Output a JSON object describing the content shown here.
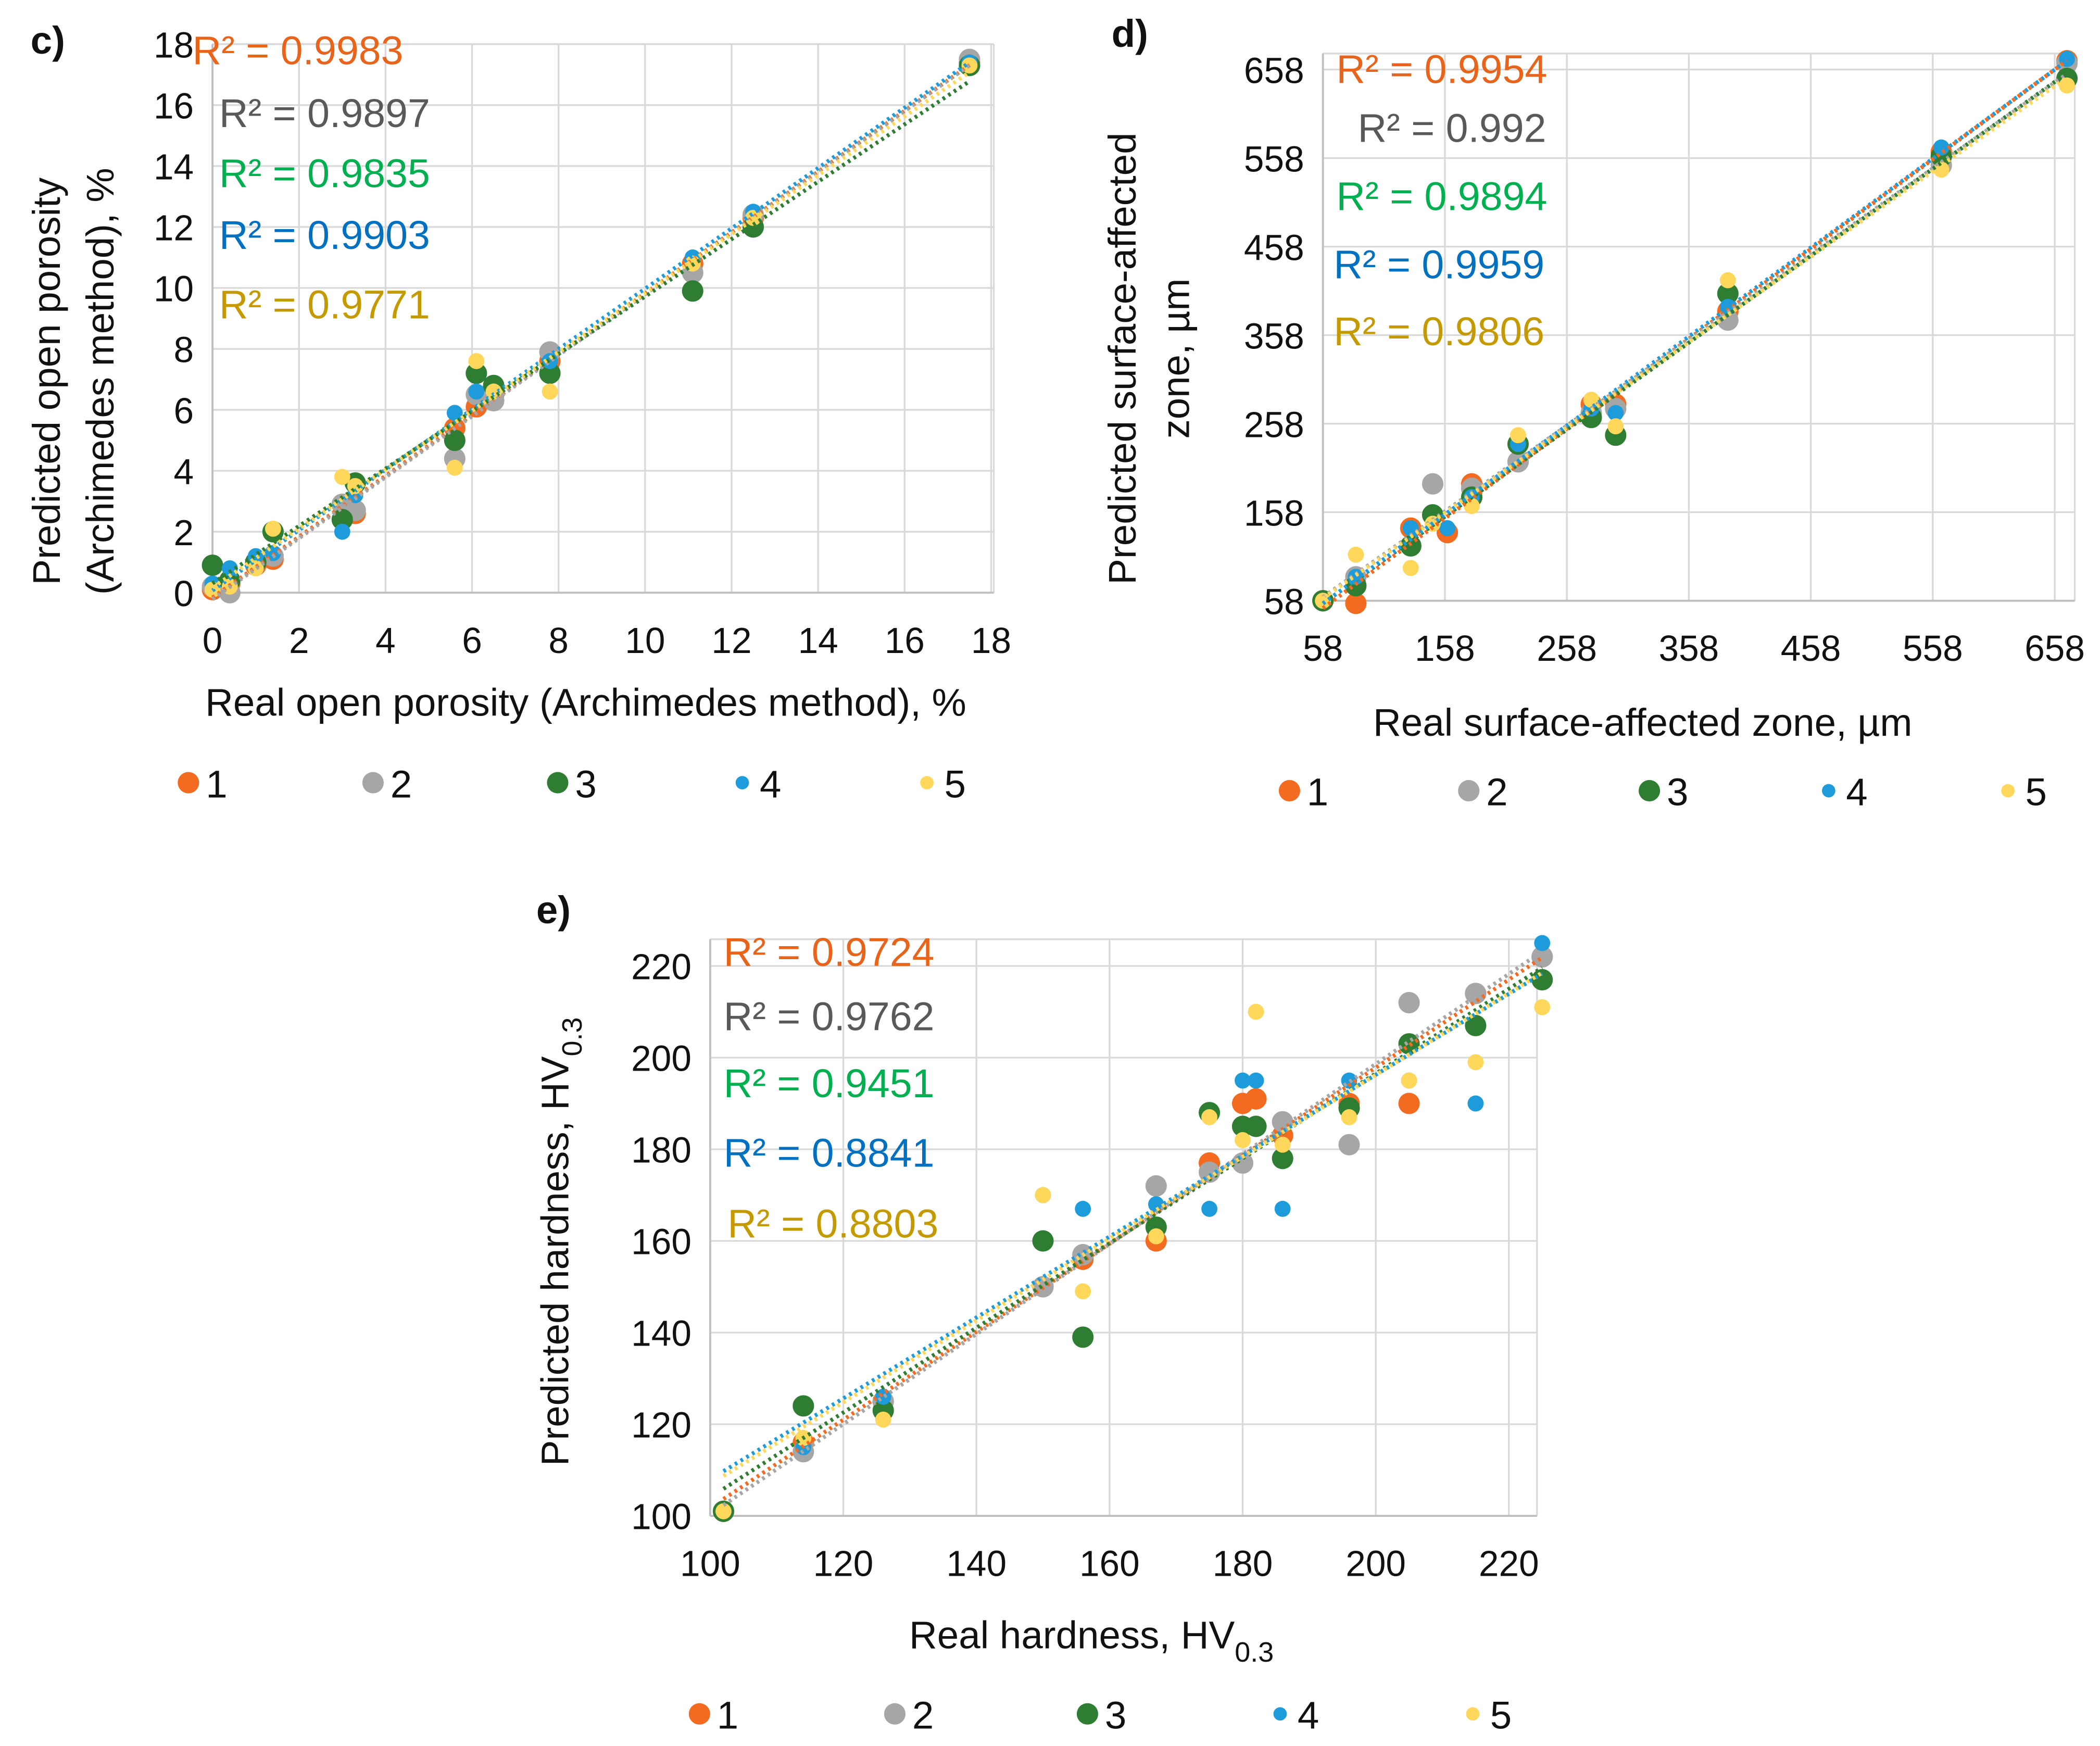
{
  "colors": {
    "s1": "#F26B21",
    "s2": "#A6A6A6",
    "s3": "#2E7D32",
    "s4": "#1E9BDB",
    "s5": "#FFD75A",
    "r2_1": "#E8641B",
    "r2_2": "#595959",
    "r2_3": "#00B050",
    "r2_4": "#0070C0",
    "r2_5": "#C49A00"
  },
  "legend": [
    "1",
    "2",
    "3",
    "4",
    "5"
  ],
  "chart_data": [
    {
      "id": "c",
      "type": "scatter",
      "panel_label": "c)",
      "xlabel": "Real open porosity (Archimedes method), %",
      "ylabel": [
        "Predicted open porosity",
        "(Archimedes method), %"
      ],
      "xlim": [
        0,
        18
      ],
      "ylim": [
        0,
        18
      ],
      "xticks": [
        "0",
        "2",
        "4",
        "6",
        "8",
        "10",
        "12",
        "14",
        "16",
        "18"
      ],
      "yticks": [
        "0",
        "2",
        "4",
        "6",
        "8",
        "10",
        "12",
        "14",
        "16",
        "18"
      ],
      "r2": [
        "R² = 0.9983",
        "R² = 0.9897",
        "R² = 0.9835",
        "R² = 0.9903",
        "R² = 0.9771"
      ],
      "trendline": "linear, dotted",
      "series": [
        {
          "name": "1",
          "points": [
            [
              0,
              0.1
            ],
            [
              0.4,
              0.3
            ],
            [
              1,
              0.9
            ],
            [
              1.4,
              1.1
            ],
            [
              3,
              2.9
            ],
            [
              3.3,
              2.6
            ],
            [
              5.6,
              5.4
            ],
            [
              6.1,
              6.1
            ],
            [
              6.5,
              6.5
            ],
            [
              7.8,
              7.6
            ],
            [
              11.1,
              10.8
            ],
            [
              12.5,
              12.3
            ],
            [
              17.5,
              17.4
            ]
          ]
        },
        {
          "name": "2",
          "points": [
            [
              0,
              0.2
            ],
            [
              0.4,
              0
            ],
            [
              1,
              1
            ],
            [
              1.4,
              1.2
            ],
            [
              3,
              2.9
            ],
            [
              3.3,
              2.7
            ],
            [
              5.6,
              4.4
            ],
            [
              6.1,
              6.5
            ],
            [
              6.5,
              6.3
            ],
            [
              7.8,
              7.9
            ],
            [
              11.1,
              10.5
            ],
            [
              12.5,
              12.4
            ],
            [
              17.5,
              17.5
            ]
          ]
        },
        {
          "name": "3",
          "points": [
            [
              0,
              0.9
            ],
            [
              0.4,
              0.4
            ],
            [
              1,
              1
            ],
            [
              1.4,
              2
            ],
            [
              3,
              2.4
            ],
            [
              3.3,
              3.6
            ],
            [
              5.6,
              5
            ],
            [
              6.1,
              7.2
            ],
            [
              6.5,
              6.8
            ],
            [
              7.8,
              7.2
            ],
            [
              11.1,
              9.9
            ],
            [
              12.5,
              12
            ],
            [
              17.5,
              17.3
            ]
          ]
        },
        {
          "name": "4",
          "points": [
            [
              0,
              0.3
            ],
            [
              0.4,
              0.8
            ],
            [
              1,
              1.2
            ],
            [
              1.4,
              1.3
            ],
            [
              3,
              2
            ],
            [
              3.3,
              3.2
            ],
            [
              5.6,
              5.9
            ],
            [
              6.1,
              6.6
            ],
            [
              6.5,
              6.6
            ],
            [
              7.8,
              7.6
            ],
            [
              11.1,
              11
            ],
            [
              12.5,
              12.5
            ],
            [
              17.5,
              17.4
            ]
          ]
        },
        {
          "name": "5",
          "points": [
            [
              0,
              0.1
            ],
            [
              0.4,
              0.2
            ],
            [
              1,
              0.8
            ],
            [
              1.4,
              2.1
            ],
            [
              3,
              3.8
            ],
            [
              3.3,
              3.5
            ],
            [
              5.6,
              4.1
            ],
            [
              6.1,
              7.6
            ],
            [
              6.5,
              6.6
            ],
            [
              7.8,
              6.6
            ],
            [
              11.1,
              10.8
            ],
            [
              12.5,
              12.3
            ],
            [
              17.5,
              17.3
            ]
          ]
        }
      ]
    },
    {
      "id": "d",
      "type": "scatter",
      "panel_label": "d)",
      "xlabel": "Real surface-affected zone, µm",
      "ylabel": [
        "Predicted surface-affected",
        "zone, µm"
      ],
      "xlim": [
        58,
        673
      ],
      "ylim": [
        58,
        673
      ],
      "xticks": [
        "58",
        "158",
        "258",
        "358",
        "458",
        "558",
        "658"
      ],
      "yticks": [
        "58",
        "158",
        "258",
        "358",
        "458",
        "558",
        "658"
      ],
      "r2": [
        "R² = 0.9954",
        "R² = 0.992",
        "R² = 0.9894",
        "R² = 0.9959",
        "R² = 0.9806"
      ],
      "trendline": "linear, dotted",
      "series": [
        {
          "name": "1",
          "points": [
            [
              58,
              58
            ],
            [
              85,
              55
            ],
            [
              130,
              140
            ],
            [
              160,
              135
            ],
            [
              180,
              190
            ],
            [
              218,
              215
            ],
            [
              278,
              280
            ],
            [
              298,
              280
            ],
            [
              390,
              385
            ],
            [
              565,
              565
            ],
            [
              668,
              668
            ]
          ]
        },
        {
          "name": "2",
          "points": [
            [
              58,
              58
            ],
            [
              85,
              85
            ],
            [
              130,
              120
            ],
            [
              148,
              190
            ],
            [
              180,
              185
            ],
            [
              218,
              215
            ],
            [
              278,
              270
            ],
            [
              298,
              275
            ],
            [
              390,
              375
            ],
            [
              565,
              550
            ],
            [
              668,
              665
            ]
          ]
        },
        {
          "name": "3",
          "points": [
            [
              58,
              58
            ],
            [
              85,
              75
            ],
            [
              130,
              120
            ],
            [
              148,
              155
            ],
            [
              180,
              175
            ],
            [
              218,
              235
            ],
            [
              278,
              265
            ],
            [
              298,
              245
            ],
            [
              390,
              405
            ],
            [
              565,
              560
            ],
            [
              668,
              648
            ]
          ]
        },
        {
          "name": "4",
          "points": [
            [
              58,
              58
            ],
            [
              85,
              85
            ],
            [
              130,
              140
            ],
            [
              160,
              140
            ],
            [
              180,
              175
            ],
            [
              218,
              235
            ],
            [
              278,
              275
            ],
            [
              298,
              270
            ],
            [
              390,
              390
            ],
            [
              565,
              570
            ],
            [
              668,
              670
            ]
          ]
        },
        {
          "name": "5",
          "points": [
            [
              58,
              58
            ],
            [
              85,
              110
            ],
            [
              130,
              95
            ],
            [
              148,
              145
            ],
            [
              180,
              165
            ],
            [
              218,
              245
            ],
            [
              278,
              285
            ],
            [
              298,
              255
            ],
            [
              390,
              420
            ],
            [
              565,
              545
            ],
            [
              668,
              640
            ]
          ]
        }
      ]
    },
    {
      "id": "e",
      "type": "scatter",
      "panel_label": "e)",
      "xlabel": "Real hardness, HV",
      "xlabel_sub": "0.3",
      "ylabel": [
        "Predicted hardness, HV"
      ],
      "ylabel_sub": "0.3",
      "xlim": [
        100,
        225
      ],
      "ylim": [
        100,
        225
      ],
      "xticks": [
        "100",
        "120",
        "140",
        "160",
        "180",
        "200",
        "220"
      ],
      "yticks": [
        "100",
        "120",
        "140",
        "160",
        "180",
        "200",
        "220"
      ],
      "r2": [
        "R² = 0.9724",
        "R² = 0.9762",
        "R² = 0.9451",
        "R² = 0.8841",
        "R² = 0.8803"
      ],
      "trendline": "linear, dotted",
      "series": [
        {
          "name": "1",
          "points": [
            [
              102,
              101
            ],
            [
              114,
              116
            ],
            [
              126,
              125
            ],
            [
              150,
              150
            ],
            [
              156,
              156
            ],
            [
              167,
              160
            ],
            [
              175,
              177
            ],
            [
              180,
              190
            ],
            [
              182,
              191
            ],
            [
              186,
              183
            ],
            [
              196,
              190
            ],
            [
              205,
              190
            ],
            [
              215,
              214
            ],
            [
              225,
              222
            ]
          ]
        },
        {
          "name": "2",
          "points": [
            [
              102,
              101
            ],
            [
              114,
              114
            ],
            [
              126,
              125
            ],
            [
              150,
              150
            ],
            [
              156,
              157
            ],
            [
              167,
              172
            ],
            [
              175,
              175
            ],
            [
              180,
              177
            ],
            [
              186,
              186
            ],
            [
              196,
              181
            ],
            [
              205,
              212
            ],
            [
              215,
              214
            ],
            [
              225,
              222
            ]
          ]
        },
        {
          "name": "3",
          "points": [
            [
              102,
              101
            ],
            [
              114,
              124
            ],
            [
              126,
              123
            ],
            [
              150,
              160
            ],
            [
              156,
              139
            ],
            [
              167,
              163
            ],
            [
              175,
              188
            ],
            [
              180,
              185
            ],
            [
              182,
              185
            ],
            [
              186,
              178
            ],
            [
              196,
              189
            ],
            [
              205,
              203
            ],
            [
              215,
              207
            ],
            [
              225,
              217
            ]
          ]
        },
        {
          "name": "4",
          "points": [
            [
              102,
              101
            ],
            [
              114,
              115
            ],
            [
              126,
              126
            ],
            [
              150,
              170
            ],
            [
              156,
              167
            ],
            [
              167,
              168
            ],
            [
              175,
              167
            ],
            [
              180,
              195
            ],
            [
              182,
              195
            ],
            [
              186,
              167
            ],
            [
              196,
              195
            ],
            [
              205,
              195
            ],
            [
              215,
              190
            ],
            [
              225,
              225
            ]
          ]
        },
        {
          "name": "5",
          "points": [
            [
              102,
              101
            ],
            [
              114,
              117
            ],
            [
              126,
              121
            ],
            [
              150,
              170
            ],
            [
              156,
              149
            ],
            [
              167,
              161
            ],
            [
              175,
              187
            ],
            [
              180,
              182
            ],
            [
              182,
              210
            ],
            [
              186,
              181
            ],
            [
              196,
              187
            ],
            [
              205,
              195
            ],
            [
              215,
              199
            ],
            [
              225,
              211
            ]
          ]
        }
      ]
    }
  ]
}
